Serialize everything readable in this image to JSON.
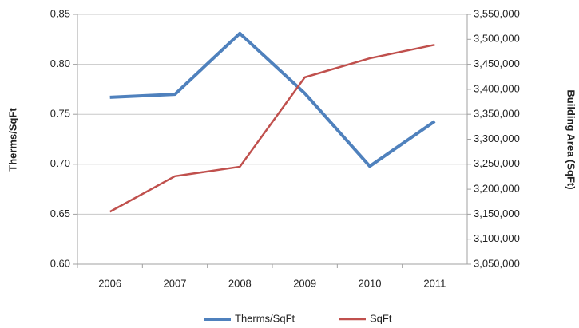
{
  "chart_data": {
    "type": "line",
    "categories": [
      "2006",
      "2007",
      "2008",
      "2009",
      "2010",
      "2011"
    ],
    "series": [
      {
        "name": "Therms/SqFt",
        "color": "#4f81bd",
        "values": [
          0.767,
          0.77,
          0.831,
          0.771,
          0.698,
          0.743
        ]
      },
      {
        "name": "SqFt",
        "color": "#c0504d",
        "axis": "y2",
        "values": [
          3155000,
          3226000,
          3245000,
          3424000,
          3462000,
          3489000
        ]
      }
    ],
    "ylabel": "Therms/SqFt",
    "y2label": "Building Area (SqFt)",
    "ylim": [
      0.6,
      0.85
    ],
    "yticks": [
      {
        "value": 0.6,
        "label": "0.60"
      },
      0.65,
      {
        "value": 0.7,
        "label": "0.70"
      },
      0.75,
      {
        "value": 0.8,
        "label": "0.80"
      },
      0.85
    ],
    "y2lim": [
      3050000,
      3550000
    ],
    "y2ticks": [
      {
        "value": 3050000,
        "label": "3,050,000"
      },
      {
        "value": 3100000,
        "label": "3,100,000"
      },
      {
        "value": 3150000,
        "label": "3,150,000"
      },
      {
        "value": 3200000,
        "label": "3,200,000"
      },
      {
        "value": 3250000,
        "label": "3,250,000"
      },
      {
        "value": 3300000,
        "label": "3,300,000"
      },
      {
        "value": 3350000,
        "label": "3,350,000"
      },
      {
        "value": 3400000,
        "label": "3,400,000"
      },
      {
        "value": 3450000,
        "label": "3,450,000"
      },
      {
        "value": 3500000,
        "label": "3,500,000"
      },
      {
        "value": 3550000,
        "label": "3,550,000"
      }
    ],
    "grid": true,
    "legend": "bottom"
  }
}
